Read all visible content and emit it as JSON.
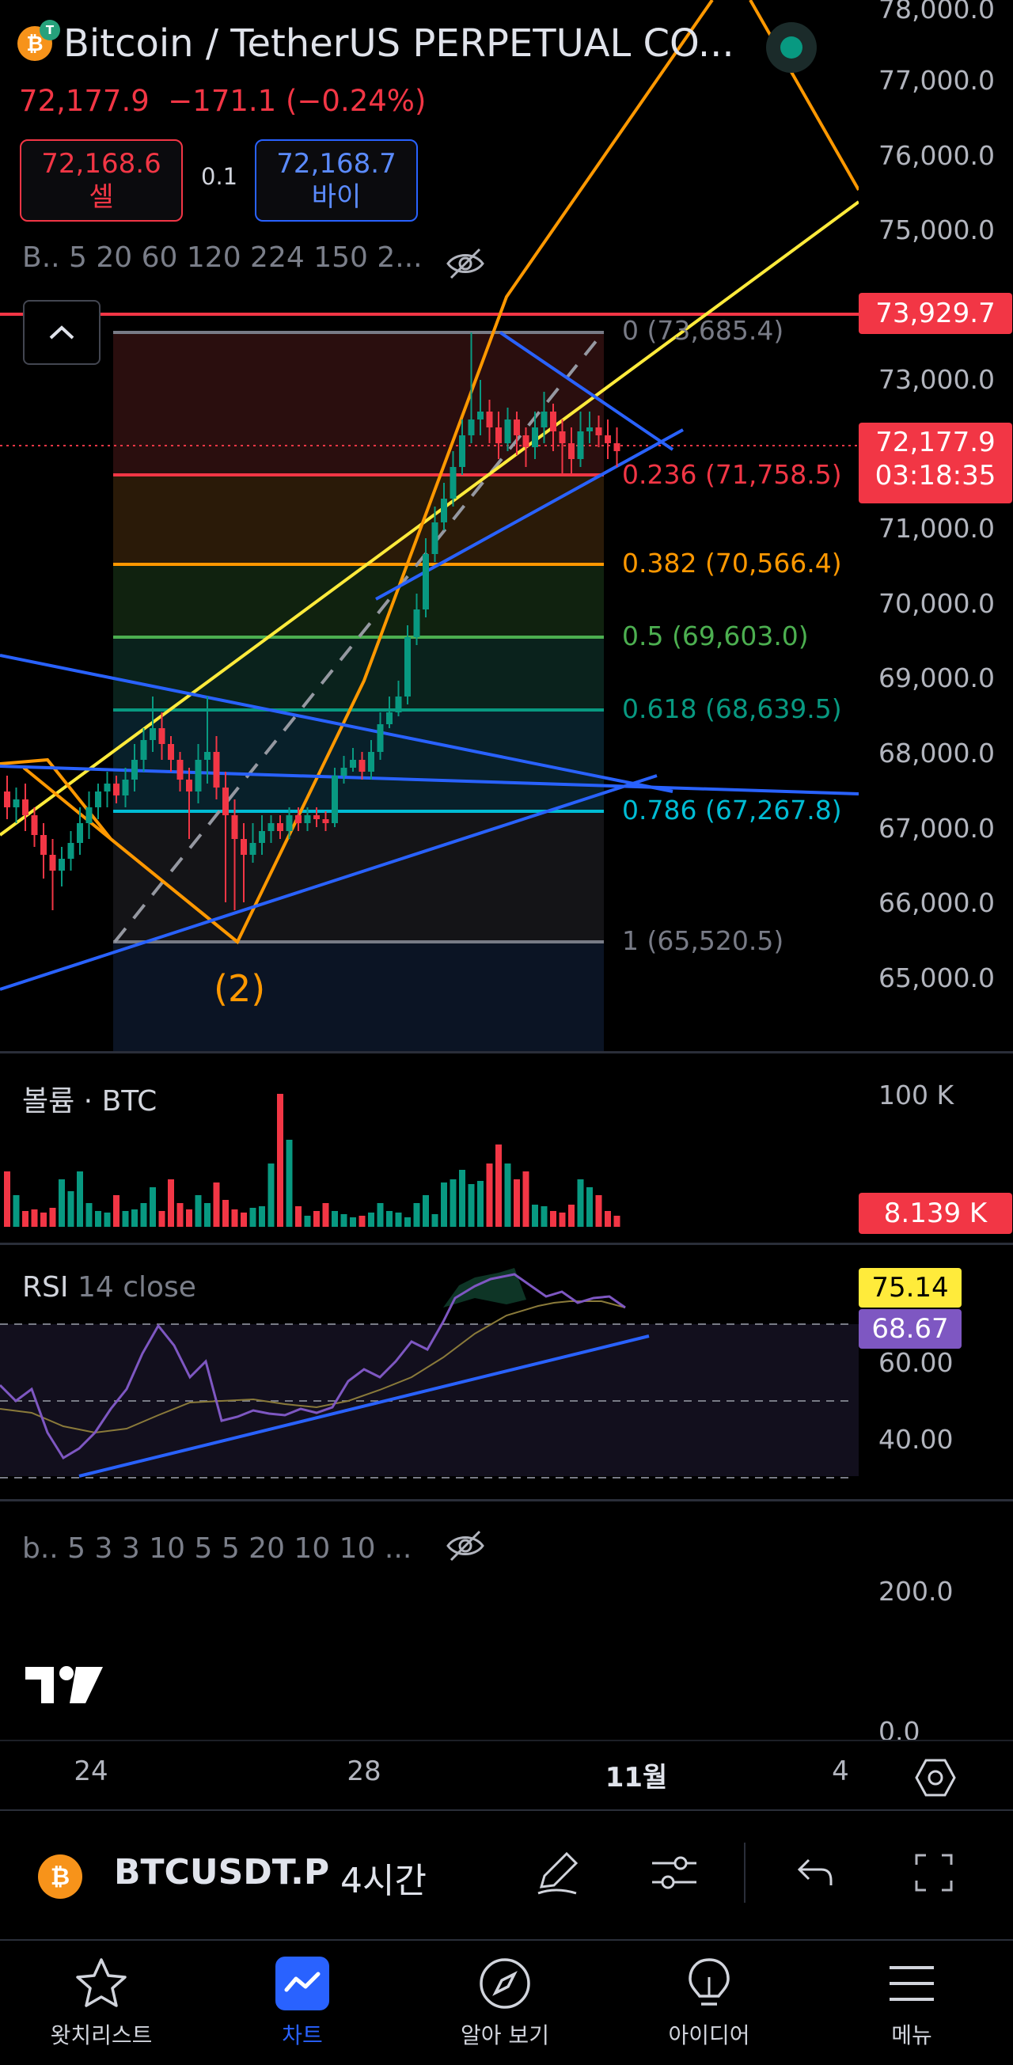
{
  "header": {
    "title": "Bitcoin / TetherUS PERPETUAL CO...",
    "coin_letter": "₿",
    "tether_letter": "T",
    "last_price": "72,177.9",
    "change": "−171.1 (−0.24%)",
    "sell_price": "72,168.6",
    "sell_label": "셀",
    "spread": "0.1",
    "buy_price": "72,168.7",
    "buy_label": "바이"
  },
  "main_pane": {
    "indicator_legend": "B.. 5 20 60 120 224 150 2...",
    "wave_label": "(2)",
    "fib_levels": [
      {
        "label": "0 (73,685.4)",
        "color": "#787b86"
      },
      {
        "label": "0.236 (71,758.5)",
        "color": "#f23645"
      },
      {
        "label": "0.382 (70,566.4)",
        "color": "#ff9800"
      },
      {
        "label": "0.5 (69,603.0)",
        "color": "#4caf50"
      },
      {
        "label": "0.618 (68,639.5)",
        "color": "#089981"
      },
      {
        "label": "0.786 (67,267.8)",
        "color": "#00bcd4"
      },
      {
        "label": "1 (65,520.5)",
        "color": "#787b86"
      }
    ],
    "price_axis": [
      "78,000.0",
      "77,000.0",
      "76,000.0",
      "75,000.0",
      "73,000.0",
      "71,000.0",
      "70,000.0",
      "69,000.0",
      "68,000.0",
      "67,000.0",
      "66,000.0",
      "65,000.0"
    ],
    "alert_tag": "73,929.7",
    "price_tag": "72,177.9",
    "countdown": "03:18:35"
  },
  "volume_pane": {
    "label": "볼륨 · BTC",
    "axis_top": "100 K",
    "current": "8.139 K"
  },
  "rsi_pane": {
    "label": "RSI",
    "params": "14 close",
    "value_ma": "75.14",
    "value_rsi": "68.67",
    "axis": [
      "60.00",
      "40.00"
    ]
  },
  "lower_pane": {
    "legend": "b.. 5 3 3 10 5 5 20 10 10 ...",
    "axis_top": "200.0",
    "axis_bottom": "0.0"
  },
  "time_axis": [
    "24",
    "28",
    "11월",
    "4"
  ],
  "symbol_bar": {
    "coin_letter": "₿",
    "symbol": "BTCUSDT.P",
    "timeframe": "4시간"
  },
  "bottom_nav": [
    {
      "label": "왓치리스트",
      "icon": "star-icon"
    },
    {
      "label": "차트",
      "icon": "chart-icon"
    },
    {
      "label": "알아 보기",
      "icon": "compass-icon"
    },
    {
      "label": "아이디어",
      "icon": "lightbulb-icon"
    },
    {
      "label": "메뉴",
      "icon": "menu-icon"
    }
  ],
  "colors": {
    "up": "#089981",
    "down": "#f23645",
    "accent": "#2962ff",
    "trendline": "#2962ff",
    "orange": "#ff9800",
    "yellow": "#ffeb3b"
  }
}
